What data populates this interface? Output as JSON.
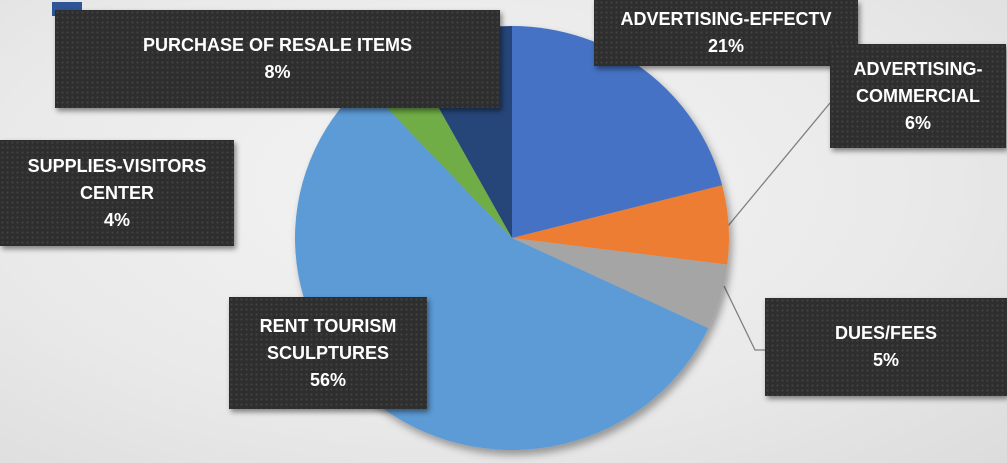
{
  "chart_data": {
    "type": "pie",
    "title": "",
    "slices": [
      {
        "name": "ADVERTISING-EFFECTV",
        "value": 21,
        "label_lines": [
          "ADVERTISING-EFFECTV"
        ],
        "pct_label": "21%",
        "color": "#4472c4"
      },
      {
        "name": "ADVERTISING-COMMERCIAL",
        "value": 6,
        "label_lines": [
          "ADVERTISING-",
          "COMMERCIAL"
        ],
        "pct_label": "6%",
        "color": "#ed7d31"
      },
      {
        "name": "DUES/FEES",
        "value": 5,
        "label_lines": [
          "DUES/FEES"
        ],
        "pct_label": "5%",
        "color": "#a5a5a5"
      },
      {
        "name": "RENT TOURISM SCULPTURES",
        "value": 56,
        "label_lines": [
          "RENT TOURISM",
          "SCULPTURES"
        ],
        "pct_label": "56%",
        "color": "#5b9bd5"
      },
      {
        "name": "SUPPLIES-VISITORS CENTER",
        "value": 4,
        "label_lines": [
          "SUPPLIES-VISITORS",
          "CENTER"
        ],
        "pct_label": "4%",
        "color": "#70ad47"
      },
      {
        "name": "PURCHASE OF RESALE ITEMS",
        "value": 8,
        "label_lines": [
          "PURCHASE OF RESALE ITEMS"
        ],
        "pct_label": "8%",
        "color": "#264478"
      }
    ],
    "legend": "none",
    "label_style": "callout"
  }
}
